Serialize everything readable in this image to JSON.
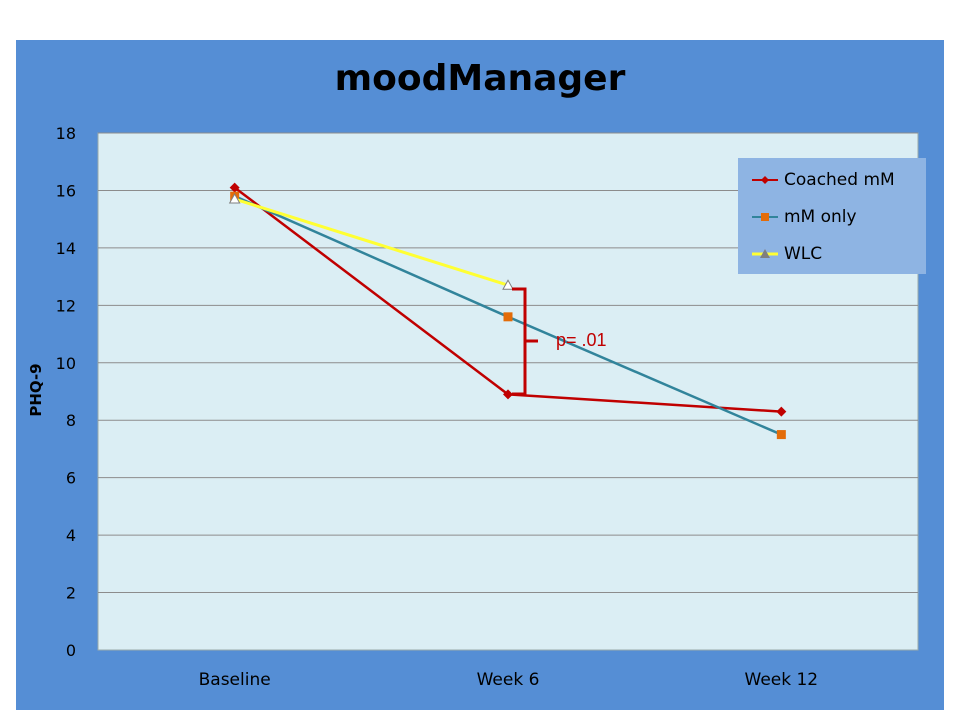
{
  "chart_data": {
    "type": "line",
    "title": "moodManager",
    "xlabel": "",
    "ylabel": "PHQ-9",
    "categories": [
      "Baseline",
      "Week 6",
      "Week 12"
    ],
    "yticks": [
      "0",
      "2",
      "4",
      "6",
      "8",
      "10",
      "12",
      "14",
      "16",
      "18"
    ],
    "ylim": [
      0,
      18
    ],
    "grid": true,
    "legend_position": "top-right",
    "series": [
      {
        "name": "Coached mM",
        "values": [
          16.1,
          8.9,
          8.3
        ],
        "color": "#c00000",
        "marker": "diamond"
      },
      {
        "name": "mM only",
        "values": [
          15.8,
          11.6,
          7.5
        ],
        "color": "#31849b",
        "marker": "square",
        "marker_color": "#e36c09"
      },
      {
        "name": "WLC",
        "values": [
          15.7,
          12.7,
          null
        ],
        "color": "#ffff33",
        "marker": "triangle"
      }
    ],
    "annotation": {
      "text": "p= .01",
      "color": "#c00000"
    }
  },
  "colors": {
    "panel": "#558ed5",
    "plot_area": "#dbeef4",
    "legend_bg": "#8eb4e3"
  }
}
